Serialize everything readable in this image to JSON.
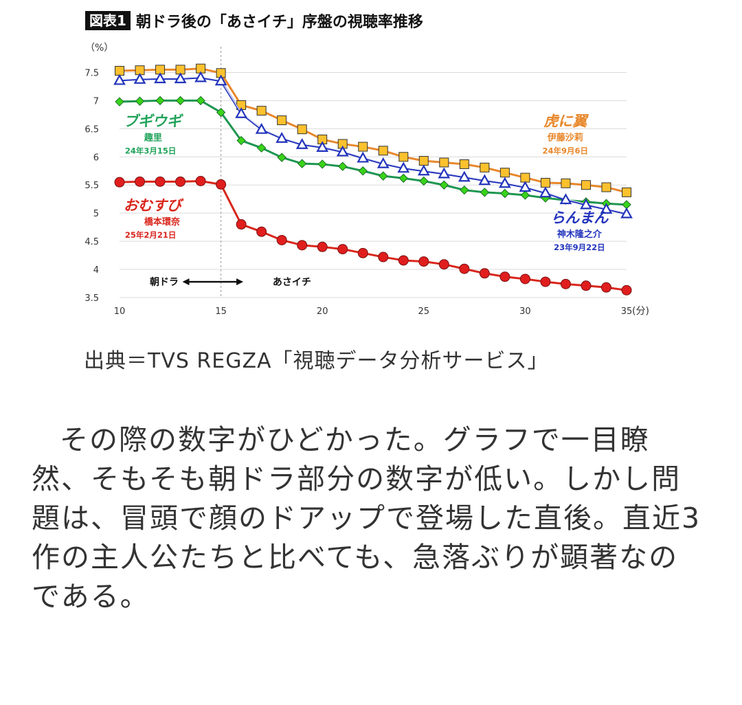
{
  "figure": {
    "badge": "図表1",
    "title": "朝ドラ後の「あさイチ」序盤の視聴率推移"
  },
  "chart_data": {
    "type": "line",
    "y_unit_label": "（%）",
    "x_unit_label": "(分)",
    "xlim": [
      10,
      35
    ],
    "ylim": [
      3.5,
      7.75
    ],
    "x_ticks": [
      10,
      15,
      20,
      25,
      30,
      35
    ],
    "y_ticks": [
      3.5,
      4,
      4.5,
      5,
      5.5,
      6,
      6.5,
      7,
      7.5
    ],
    "grid": "horizontal",
    "divider_x": 15,
    "annotation": {
      "left": "朝ドラ",
      "right": "あさイチ",
      "x_left": 12.2,
      "x_right": 18.5,
      "y": 3.78
    },
    "x": [
      10,
      11,
      12,
      13,
      14,
      15,
      16,
      17,
      18,
      19,
      20,
      21,
      22,
      23,
      24,
      25,
      26,
      27,
      28,
      29,
      30,
      31,
      32,
      33,
      34,
      35
    ],
    "series": [
      {
        "title": "虎に翼",
        "actor": "伊藤沙莉",
        "date": "24年9月6日",
        "color": "#E8872A",
        "line_color": "#E8872A",
        "marker": "square",
        "marker_fill": "#FDC12E",
        "values": [
          7.53,
          7.54,
          7.55,
          7.55,
          7.57,
          7.49,
          6.92,
          6.82,
          6.65,
          6.49,
          6.31,
          6.23,
          6.18,
          6.11,
          6.0,
          5.93,
          5.9,
          5.87,
          5.81,
          5.72,
          5.63,
          5.54,
          5.53,
          5.5,
          5.46,
          5.37
        ],
        "label_pos": {
          "x": 31.3,
          "y": 6.55
        }
      },
      {
        "title": "らんまん",
        "actor": "神木隆之介",
        "date": "23年9月22日",
        "color": "#2233BB",
        "line_color": "#2233BB",
        "marker": "triangle",
        "marker_fill": "#FFFFFF",
        "values": [
          7.36,
          7.38,
          7.39,
          7.39,
          7.41,
          7.35,
          6.77,
          6.49,
          6.33,
          6.22,
          6.17,
          6.09,
          5.98,
          5.88,
          5.8,
          5.75,
          5.7,
          5.64,
          5.58,
          5.53,
          5.46,
          5.36,
          5.24,
          5.15,
          5.07,
          4.99
        ],
        "label_pos": {
          "x": 32.0,
          "y": 4.83
        }
      },
      {
        "title": "ブギウギ",
        "actor": "趣里",
        "date": "24年3月15日",
        "color": "#21A35A",
        "line_color": "#1E9650",
        "marker": "diamond",
        "marker_fill": "#39D31A",
        "values": [
          6.98,
          6.99,
          7.0,
          7.0,
          7.0,
          6.79,
          6.29,
          6.16,
          5.99,
          5.88,
          5.87,
          5.83,
          5.75,
          5.66,
          5.62,
          5.57,
          5.5,
          5.41,
          5.37,
          5.35,
          5.32,
          5.27,
          5.23,
          5.2,
          5.17,
          5.15
        ],
        "label_pos": {
          "x": 10.2,
          "y": 6.55
        }
      },
      {
        "title": "おむすび",
        "actor": "橋本環奈",
        "date": "25年2月21日",
        "color": "#D9261C",
        "line_color": "#D9261C",
        "marker": "circle",
        "marker_fill": "#E01E1E",
        "values": [
          5.55,
          5.56,
          5.56,
          5.56,
          5.57,
          5.51,
          4.8,
          4.67,
          4.52,
          4.43,
          4.4,
          4.36,
          4.29,
          4.22,
          4.16,
          4.14,
          4.09,
          4.01,
          3.93,
          3.87,
          3.83,
          3.78,
          3.74,
          3.71,
          3.68,
          3.63
        ],
        "label_pos": {
          "x": 10.2,
          "y": 5.05
        }
      }
    ]
  },
  "source": "出典＝TVS REGZA「視聴データ分析サービス」",
  "body": "その際の数字がひどかった。グラフで一目瞭然、そもそも朝ドラ部分の数字が低い。しかし問題は、冒頭で顔のドアップで登場した直後。直近3作の主人公たちと比べても、急落ぶりが顕著なのである。"
}
